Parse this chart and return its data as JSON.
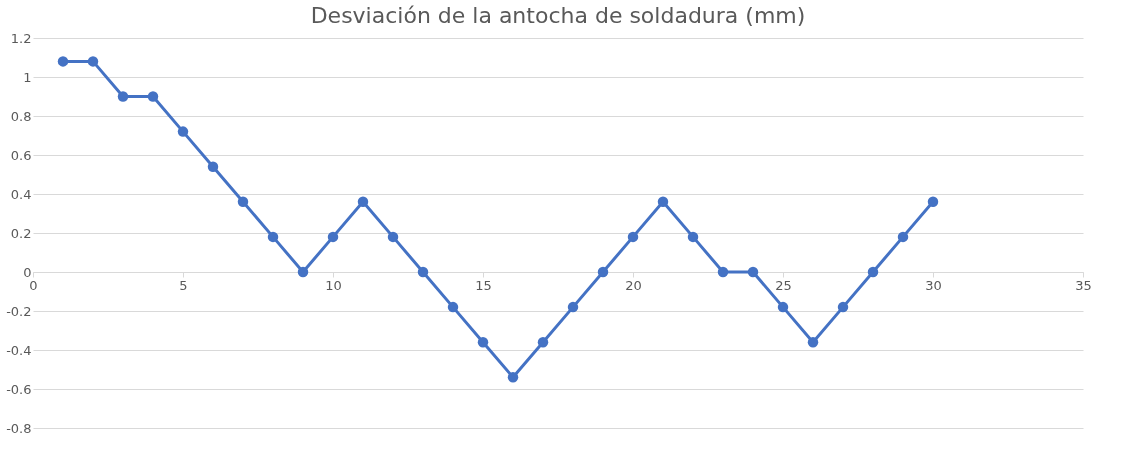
{
  "chart_data": {
    "type": "line",
    "title": "Desviación de la antocha de soldadura (mm)",
    "x": [
      1,
      2,
      3,
      4,
      5,
      6,
      7,
      8,
      9,
      10,
      11,
      12,
      13,
      14,
      15,
      16,
      17,
      18,
      19,
      20,
      21,
      22,
      23,
      24,
      25,
      26,
      27,
      28,
      29,
      30
    ],
    "series": [
      {
        "color": "#4472c4",
        "values": [
          1.08,
          1.08,
          0.9,
          0.9,
          0.72,
          0.54,
          0.36,
          0.18,
          0,
          0.18,
          0.36,
          0.18,
          0,
          -0.18,
          -0.36,
          -0.54,
          -0.36,
          -0.18,
          0,
          0.18,
          0.36,
          0.18,
          0,
          0,
          -0.18,
          -0.36,
          -0.18,
          0,
          0.18,
          0.36
        ]
      }
    ],
    "xlim": [
      0,
      35
    ],
    "xticks": [
      0,
      5,
      10,
      15,
      20,
      25,
      30,
      35
    ],
    "ylim": [
      -0.8,
      1.2
    ],
    "yticks": [
      -0.8,
      -0.6,
      -0.4,
      -0.2,
      0,
      0.2,
      0.4,
      0.6,
      0.8,
      1,
      1.2
    ],
    "grid": "y",
    "marker": "circle",
    "line_style": "solid"
  }
}
